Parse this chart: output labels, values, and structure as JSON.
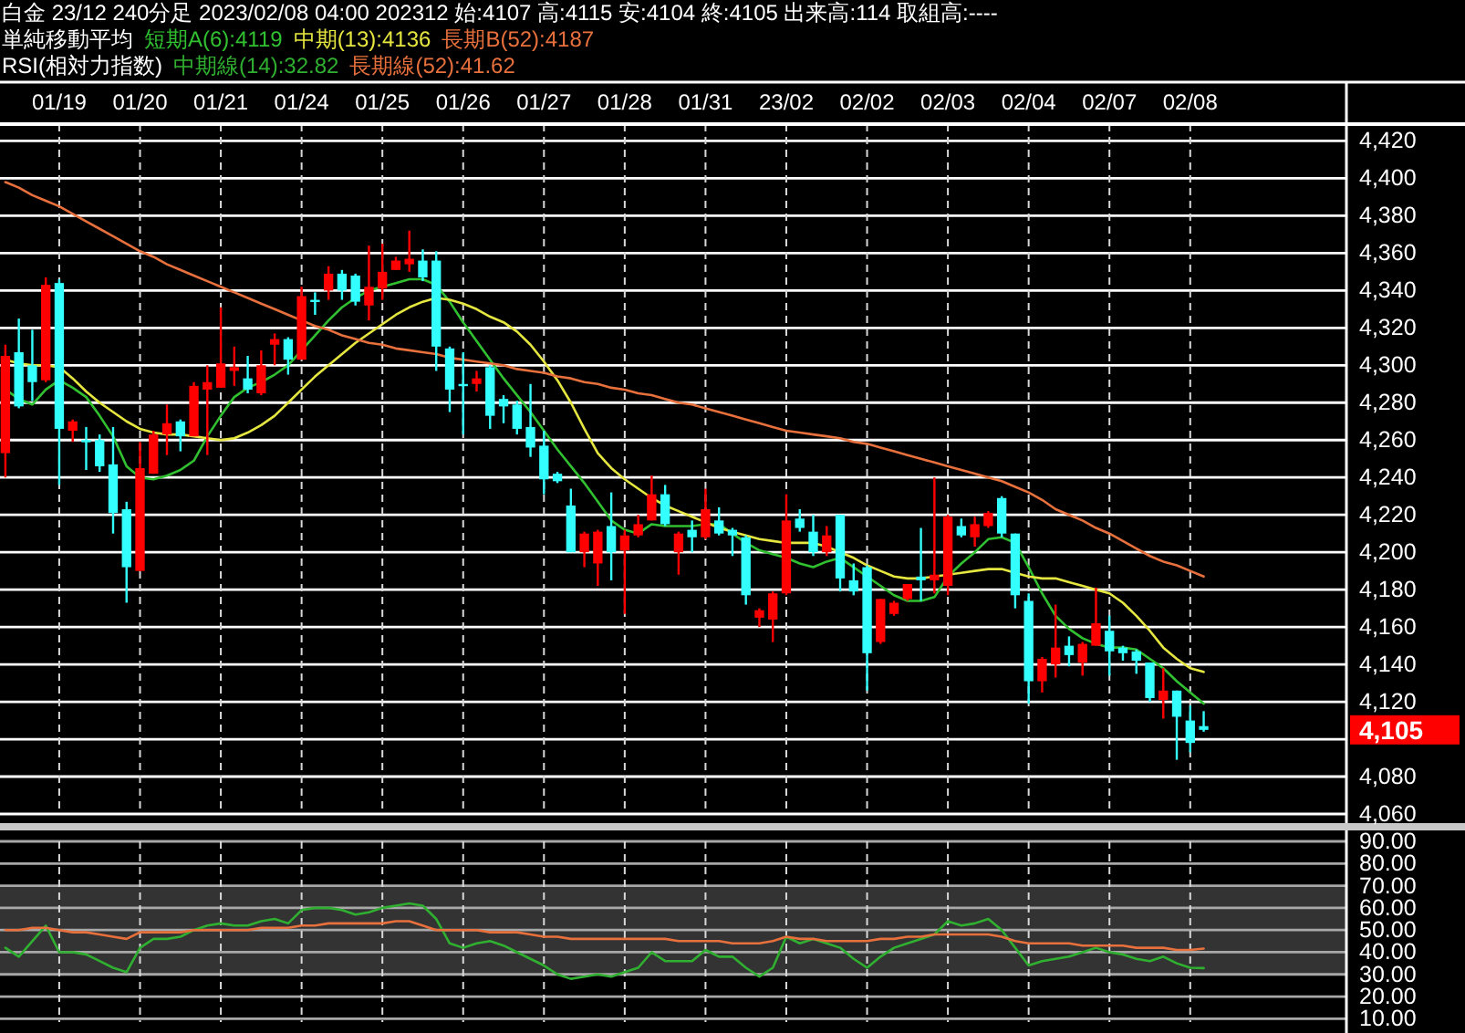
{
  "chart_data": [
    {
      "type": "candlestick",
      "title": "白金 23/12 240分足 2023/02/08 04:00 202312 始:4107 高:4115 安:4104 終:4105 出来高:114 取組高:----",
      "legend_title": "単純移動平均",
      "legend": "top left",
      "grid": true,
      "categories": [
        null,
        null,
        null,
        null,
        "01/19",
        null,
        null,
        null,
        null,
        null,
        "01/20",
        null,
        null,
        null,
        null,
        null,
        "01/21",
        null,
        null,
        null,
        null,
        null,
        "01/24",
        null,
        null,
        null,
        null,
        null,
        "01/25",
        null,
        null,
        null,
        null,
        null,
        "01/26",
        null,
        null,
        null,
        null,
        null,
        "01/27",
        null,
        null,
        null,
        null,
        null,
        "01/28",
        null,
        null,
        null,
        null,
        null,
        "01/31",
        null,
        null,
        null,
        null,
        null,
        "23/02",
        null,
        null,
        null,
        null,
        null,
        "02/02",
        null,
        null,
        null,
        null,
        null,
        "02/03",
        null,
        null,
        null,
        null,
        null,
        "02/04",
        null,
        null,
        null,
        null,
        null,
        "02/07",
        null,
        null,
        null,
        null,
        null,
        "02/08",
        null
      ],
      "ohlc": [
        [
          4253,
          4311,
          4240,
          4305
        ],
        [
          4307,
          4325,
          4277,
          4278
        ],
        [
          4300,
          4319,
          4281,
          4291
        ],
        [
          4292,
          4347,
          4291,
          4343
        ],
        [
          4344,
          4346,
          4236,
          4266
        ],
        [
          4265,
          4271,
          4259,
          4270
        ],
        [
          4260,
          4267,
          4244,
          4259
        ],
        [
          4260,
          4263,
          4243,
          4246
        ],
        [
          4247,
          4267,
          4210,
          4221
        ],
        [
          4223,
          4227,
          4173,
          4192
        ],
        [
          4190,
          4259,
          4190,
          4245
        ],
        [
          4242,
          4265,
          4242,
          4263
        ],
        [
          4263,
          4279,
          4252,
          4269
        ],
        [
          4270,
          4271,
          4254,
          4262
        ],
        [
          4262,
          4291,
          4262,
          4289
        ],
        [
          4287,
          4300,
          4252,
          4291
        ],
        [
          4288,
          4331,
          4288,
          4301
        ],
        [
          4297,
          4310,
          4289,
          4299
        ],
        [
          4293,
          4305,
          4285,
          4287
        ],
        [
          4285,
          4308,
          4284,
          4300
        ],
        [
          4311,
          4317,
          4300,
          4314
        ],
        [
          4314,
          4315,
          4295,
          4303
        ],
        [
          4303,
          4342,
          4303,
          4337
        ],
        [
          4335,
          4339,
          4327,
          4334
        ],
        [
          4340,
          4353,
          4335,
          4349
        ],
        [
          4349,
          4351,
          4335,
          4340
        ],
        [
          4348,
          4349,
          4332,
          4334
        ],
        [
          4332,
          4364,
          4324,
          4342
        ],
        [
          4341,
          4365,
          4335,
          4350
        ],
        [
          4351,
          4358,
          4351,
          4356
        ],
        [
          4354,
          4372,
          4350,
          4357
        ],
        [
          4356,
          4362,
          4345,
          4347
        ],
        [
          4356,
          4361,
          4297,
          4310
        ],
        [
          4309,
          4310,
          4275,
          4287
        ],
        [
          4290,
          4307,
          4263,
          4289
        ],
        [
          4290,
          4297,
          4286,
          4293
        ],
        [
          4299,
          4300,
          4266,
          4273
        ],
        [
          4282,
          4284,
          4269,
          4278
        ],
        [
          4279,
          4281,
          4263,
          4266
        ],
        [
          4267,
          4290,
          4251,
          4256
        ],
        [
          4257,
          4265,
          4231,
          4239
        ],
        [
          4242,
          4243,
          4237,
          4238
        ],
        [
          4225,
          4234,
          4200,
          4200
        ],
        [
          4200,
          4211,
          4192,
          4210
        ],
        [
          4194,
          4212,
          4182,
          4211
        ],
        [
          4214,
          4232,
          4185,
          4200
        ],
        [
          4201,
          4212,
          4167,
          4209
        ],
        [
          4209,
          4220,
          4208,
          4215
        ],
        [
          4217,
          4241,
          4217,
          4231
        ],
        [
          4231,
          4236,
          4214,
          4215
        ],
        [
          4200,
          4211,
          4188,
          4210
        ],
        [
          4212,
          4217,
          4200,
          4208
        ],
        [
          4208,
          4234,
          4207,
          4223
        ],
        [
          4217,
          4224,
          4209,
          4210
        ],
        [
          4212,
          4213,
          4198,
          4209
        ],
        [
          4208,
          4209,
          4172,
          4177
        ],
        [
          4165,
          4170,
          4160,
          4169
        ],
        [
          4164,
          4179,
          4152,
          4178
        ],
        [
          4178,
          4231,
          4177,
          4217
        ],
        [
          4218,
          4223,
          4211,
          4213
        ],
        [
          4211,
          4220,
          4198,
          4200
        ],
        [
          4200,
          4214,
          4198,
          4209
        ],
        [
          4220,
          4220,
          4179,
          4186
        ],
        [
          4185,
          4194,
          4177,
          4179
        ],
        [
          4192,
          4193,
          4126,
          4146
        ],
        [
          4152,
          4175,
          4151,
          4175
        ],
        [
          4167,
          4174,
          4166,
          4173
        ],
        [
          4175,
          4183,
          4174,
          4183
        ],
        [
          4187,
          4213,
          4174,
          4185
        ],
        [
          4185,
          4240,
          4178,
          4188
        ],
        [
          4182,
          4220,
          4177,
          4219
        ],
        [
          4214,
          4218,
          4208,
          4209
        ],
        [
          4208,
          4219,
          4203,
          4215
        ],
        [
          4214,
          4222,
          4213,
          4221
        ],
        [
          4229,
          4230,
          4208,
          4210
        ],
        [
          4210,
          4210,
          4170,
          4177
        ],
        [
          4174,
          4178,
          4119,
          4131
        ],
        [
          4131,
          4144,
          4125,
          4143
        ],
        [
          4140,
          4172,
          4133,
          4149
        ],
        [
          4150,
          4155,
          4139,
          4145
        ],
        [
          4141,
          4152,
          4134,
          4151
        ],
        [
          4150,
          4181,
          4150,
          4162
        ],
        [
          4158,
          4166,
          4134,
          4147
        ],
        [
          4149,
          4150,
          4142,
          4146
        ],
        [
          4147,
          4148,
          4135,
          4142
        ],
        [
          4141,
          4141,
          4120,
          4122
        ],
        [
          4121,
          4138,
          4111,
          4126
        ],
        [
          4126,
          4126,
          4089,
          4112
        ],
        [
          4110,
          4118,
          4093,
          4098
        ],
        [
          4107,
          4115,
          4104,
          4105
        ]
      ],
      "colors": [
        "#ff0000",
        "#33ffff",
        "#33ffff",
        "#ff0000",
        "#33ffff",
        "#ff0000",
        "#33ffff",
        "#33ffff",
        "#33ffff",
        "#33ffff",
        "#ff0000",
        "#ff0000",
        "#ff0000",
        "#33ffff",
        "#ff0000",
        "#ff0000",
        "#ff0000",
        "#ff0000",
        "#33ffff",
        "#ff0000",
        "#ff0000",
        "#33ffff",
        "#ff0000",
        "#33ffff",
        "#ff0000",
        "#33ffff",
        "#33ffff",
        "#ff0000",
        "#ff0000",
        "#ff0000",
        "#ff0000",
        "#33ffff",
        "#33ffff",
        "#33ffff",
        "#33ffff",
        "#ff0000",
        "#33ffff",
        "#33ffff",
        "#33ffff",
        "#33ffff",
        "#33ffff",
        "#33ffff",
        "#33ffff",
        "#ff0000",
        "#ff0000",
        "#33ffff",
        "#ff0000",
        "#ff0000",
        "#ff0000",
        "#33ffff",
        "#ff0000",
        "#33ffff",
        "#ff0000",
        "#33ffff",
        "#33ffff",
        "#33ffff",
        "#ff0000",
        "#ff0000",
        "#ff0000",
        "#33ffff",
        "#33ffff",
        "#ff0000",
        "#33ffff",
        "#33ffff",
        "#33ffff",
        "#ff0000",
        "#ff0000",
        "#ff0000",
        "#33ffff",
        "#ff0000",
        "#ff0000",
        "#33ffff",
        "#ff0000",
        "#ff0000",
        "#33ffff",
        "#33ffff",
        "#33ffff",
        "#ff0000",
        "#ff0000",
        "#33ffff",
        "#ff0000",
        "#ff0000",
        "#33ffff",
        "#33ffff",
        "#33ffff",
        "#33ffff",
        "#ff0000",
        "#33ffff",
        "#33ffff",
        "#33ffff"
      ],
      "series": [
        {
          "name": "短期A(6):4119",
          "color": "#30c030",
          "type": "line",
          "values": [
            4287,
            4282,
            4279,
            4287,
            4292,
            4288,
            4283,
            4273,
            4262,
            4246,
            4240,
            4239,
            4241,
            4244,
            4249,
            4262,
            4273,
            4283,
            4288,
            4291,
            4295,
            4300,
            4308,
            4316,
            4324,
            4331,
            4336,
            4340,
            4342,
            4344,
            4346,
            4346,
            4343,
            4334,
            4323,
            4313,
            4303,
            4293,
            4284,
            4275,
            4265,
            4255,
            4246,
            4237,
            4227,
            4217,
            4212,
            4210,
            4215,
            4214,
            4214,
            4214,
            4215,
            4215,
            4210,
            4205,
            4201,
            4199,
            4197,
            4194,
            4192,
            4195,
            4197,
            4192,
            4187,
            4182,
            4177,
            4174,
            4174,
            4176,
            4187,
            4194,
            4200,
            4207,
            4208,
            4205,
            4192,
            4178,
            4166,
            4159,
            4154,
            4151,
            4149,
            4149,
            4148,
            4143,
            4138,
            4131,
            4125,
            4119
          ]
        },
        {
          "name": "中期(13):4136",
          "color": "#e6e640",
          "type": "line",
          "values": [
            4303,
            4301,
            4300,
            4300,
            4299,
            4293,
            4286,
            4280,
            4275,
            4270,
            4266,
            4264,
            4263,
            4263,
            4262,
            4261,
            4260,
            4261,
            4264,
            4268,
            4273,
            4280,
            4287,
            4294,
            4300,
            4306,
            4312,
            4317,
            4322,
            4327,
            4331,
            4334,
            4336,
            4335,
            4333,
            4330,
            4326,
            4323,
            4318,
            4311,
            4302,
            4292,
            4280,
            4266,
            4253,
            4245,
            4239,
            4234,
            4229,
            4225,
            4222,
            4219,
            4216,
            4213,
            4211,
            4209,
            4207,
            4206,
            4205,
            4205,
            4205,
            4203,
            4200,
            4197,
            4193,
            4190,
            4187,
            4186,
            4186,
            4187,
            4188,
            4189,
            4190,
            4191,
            4191,
            4189,
            4187,
            4186,
            4186,
            4184,
            4182,
            4180,
            4178,
            4173,
            4166,
            4158,
            4149,
            4143,
            4138,
            4136
          ]
        },
        {
          "name": "長期B(52):4187",
          "color": "#e8703c",
          "type": "line",
          "values": [
            4398,
            4395,
            4391,
            4388,
            4385,
            4381,
            4377,
            4373,
            4369,
            4365,
            4361,
            4358,
            4354,
            4351,
            4348,
            4345,
            4342,
            4339,
            4336,
            4333,
            4330,
            4327,
            4324,
            4321,
            4319,
            4316,
            4314,
            4312,
            4311,
            4309,
            4308,
            4307,
            4306,
            4304,
            4303,
            4302,
            4301,
            4300,
            4298,
            4297,
            4296,
            4294,
            4293,
            4291,
            4290,
            4288,
            4287,
            4285,
            4284,
            4282,
            4280,
            4279,
            4277,
            4275,
            4273,
            4271,
            4269,
            4267,
            4265,
            4264,
            4263,
            4262,
            4261,
            4259,
            4258,
            4256,
            4254,
            4252,
            4250,
            4248,
            4246,
            4244,
            4242,
            4240,
            4238,
            4235,
            4232,
            4228,
            4223,
            4220,
            4217,
            4213,
            4210,
            4206,
            4202,
            4198,
            4195,
            4193,
            4190,
            4187
          ]
        }
      ],
      "ylim": [
        4060,
        4429
      ],
      "yticks": [
        {
          "value": 4060,
          "label": "4,060"
        },
        {
          "value": 4080,
          "label": "4,080"
        },
        {
          "value": 4100,
          "label": null
        },
        {
          "value": 4120,
          "label": "4,120"
        },
        {
          "value": 4140,
          "label": "4,140"
        },
        {
          "value": 4160,
          "label": "4,160"
        },
        {
          "value": 4180,
          "label": "4,180"
        },
        {
          "value": 4200,
          "label": "4,200"
        },
        {
          "value": 4220,
          "label": "4,220"
        },
        {
          "value": 4240,
          "label": "4,240"
        },
        {
          "value": 4260,
          "label": "4,260"
        },
        {
          "value": 4280,
          "label": "4,280"
        },
        {
          "value": 4300,
          "label": "4,300"
        },
        {
          "value": 4320,
          "label": "4,320"
        },
        {
          "value": 4340,
          "label": "4,340"
        },
        {
          "value": 4360,
          "label": "4,360"
        },
        {
          "value": 4380,
          "label": "4,380"
        },
        {
          "value": 4400,
          "label": "4,400"
        },
        {
          "value": 4420,
          "label": "4,420"
        }
      ],
      "annotations": [
        "4,105"
      ]
    },
    {
      "type": "line",
      "legend_title": "RSI(相対力指数)",
      "legend": "top left",
      "grid": true,
      "tick_labels": "y",
      "categories": [
        null,
        null,
        null,
        null,
        null,
        null,
        null,
        null,
        null,
        null,
        null,
        null,
        null,
        null,
        null,
        null,
        null,
        null,
        null,
        null,
        null,
        null,
        null,
        null,
        null,
        null,
        null,
        null,
        null,
        null,
        null,
        null,
        null,
        null,
        null,
        null,
        null,
        null,
        null,
        null,
        null,
        null,
        null,
        null,
        null,
        null,
        null,
        null,
        null,
        null,
        null,
        null,
        null,
        null,
        null,
        null,
        null,
        null,
        null,
        null,
        null,
        null,
        null,
        null,
        null,
        null,
        null,
        null,
        null,
        null,
        null,
        null,
        null,
        null,
        null,
        null,
        null,
        null,
        null,
        null,
        null,
        null,
        null,
        null,
        null,
        null,
        null,
        null,
        null,
        null
      ],
      "series": [
        {
          "name": "中期線(14):32.82",
          "color": "#30b030",
          "values": [
            42,
            38,
            45,
            52,
            40,
            40,
            39,
            36,
            33,
            31,
            42,
            46,
            46,
            47,
            50,
            52,
            53,
            52,
            52,
            54,
            55,
            53,
            59,
            60,
            60,
            59,
            57,
            58,
            60,
            61,
            62,
            61,
            55,
            44,
            42,
            44,
            45,
            43,
            40,
            37,
            34,
            30,
            28,
            29,
            30,
            29,
            31,
            33,
            40,
            36,
            36,
            36,
            41,
            38,
            38,
            33,
            29,
            33,
            47,
            44,
            46,
            44,
            42,
            37,
            33,
            38,
            42,
            44,
            46,
            48,
            54,
            52,
            53,
            55,
            50,
            42,
            34,
            36,
            37,
            38,
            40,
            42,
            40,
            39,
            37,
            36,
            38,
            35,
            33,
            32.82
          ]
        },
        {
          "name": "長期線(52):41.62",
          "color": "#e8703c",
          "values": [
            50,
            50,
            51,
            51,
            50,
            49,
            49,
            48,
            47,
            46,
            49,
            49,
            49,
            49,
            50,
            50,
            50,
            50,
            50,
            51,
            51,
            51,
            52,
            52,
            53,
            53,
            53,
            53,
            53,
            54,
            54,
            52,
            50,
            50,
            50,
            50,
            49,
            49,
            49,
            48,
            47,
            47,
            46,
            46,
            46,
            46,
            46,
            46,
            46,
            46,
            45,
            45,
            45,
            45,
            44,
            44,
            44,
            45,
            47,
            46,
            46,
            45,
            45,
            45,
            45,
            46,
            46,
            47,
            47,
            48,
            48,
            48,
            48,
            48,
            47,
            45,
            44,
            44,
            44,
            44,
            43,
            43,
            43,
            43,
            42,
            42,
            42,
            41,
            41,
            41.62
          ]
        }
      ],
      "ylim": [
        8.5,
        90
      ],
      "yticks": [
        {
          "value": 10,
          "label": "10.00"
        },
        {
          "value": 20,
          "label": "20.00"
        },
        {
          "value": 30,
          "label": "30.00"
        },
        {
          "value": 40,
          "label": "40.00"
        },
        {
          "value": 50,
          "label": "50.00"
        },
        {
          "value": 60,
          "label": "60.00"
        },
        {
          "value": 70,
          "label": "70.00"
        },
        {
          "value": 80,
          "label": "80.00"
        },
        {
          "value": 90,
          "label": "90.00"
        }
      ],
      "bands": [
        {
          "axis": "y",
          "from": 30,
          "to": 70,
          "color": "#333333"
        }
      ]
    }
  ]
}
